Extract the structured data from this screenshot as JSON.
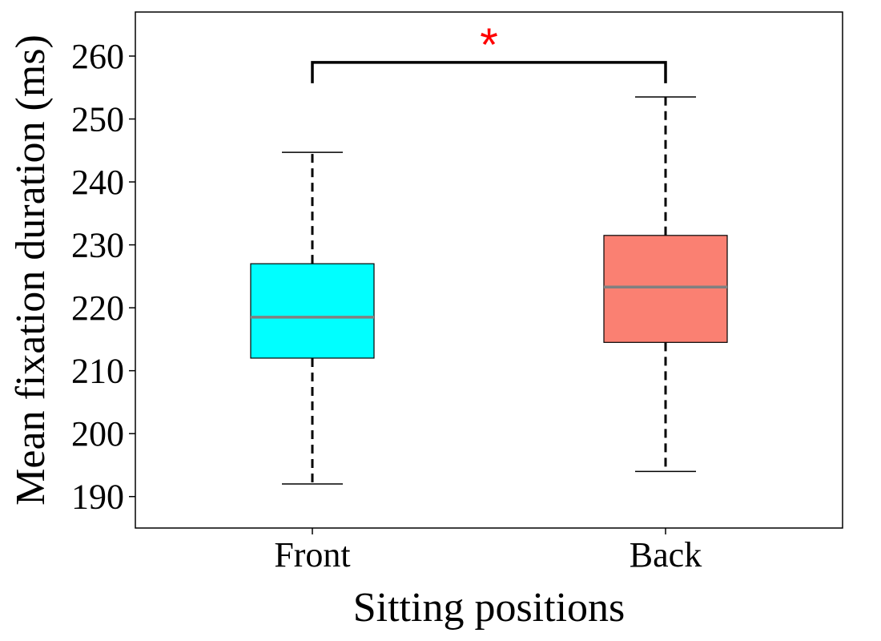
{
  "chart_data": {
    "type": "boxplot",
    "xlabel": "Sitting positions",
    "ylabel": "Mean fixation duration (ms)",
    "categories": [
      "Front",
      "Back"
    ],
    "ylim": [
      185,
      267
    ],
    "yticks": [
      190,
      200,
      210,
      220,
      230,
      240,
      250,
      260
    ],
    "grid": false,
    "boxes": [
      {
        "category": "Front",
        "whisker_low": 192,
        "q1": 212,
        "median": 218.5,
        "q3": 227,
        "whisker_high": 244.7,
        "fill": "#00ffff"
      },
      {
        "category": "Back",
        "whisker_low": 194,
        "q1": 214.5,
        "median": 223.3,
        "q3": 231.5,
        "whisker_high": 253.5,
        "fill": "#fa8072"
      }
    ],
    "median_color": "#808080",
    "significance": {
      "between": [
        "Front",
        "Back"
      ],
      "level": 259,
      "label": "*",
      "color": "#ff0000"
    }
  }
}
